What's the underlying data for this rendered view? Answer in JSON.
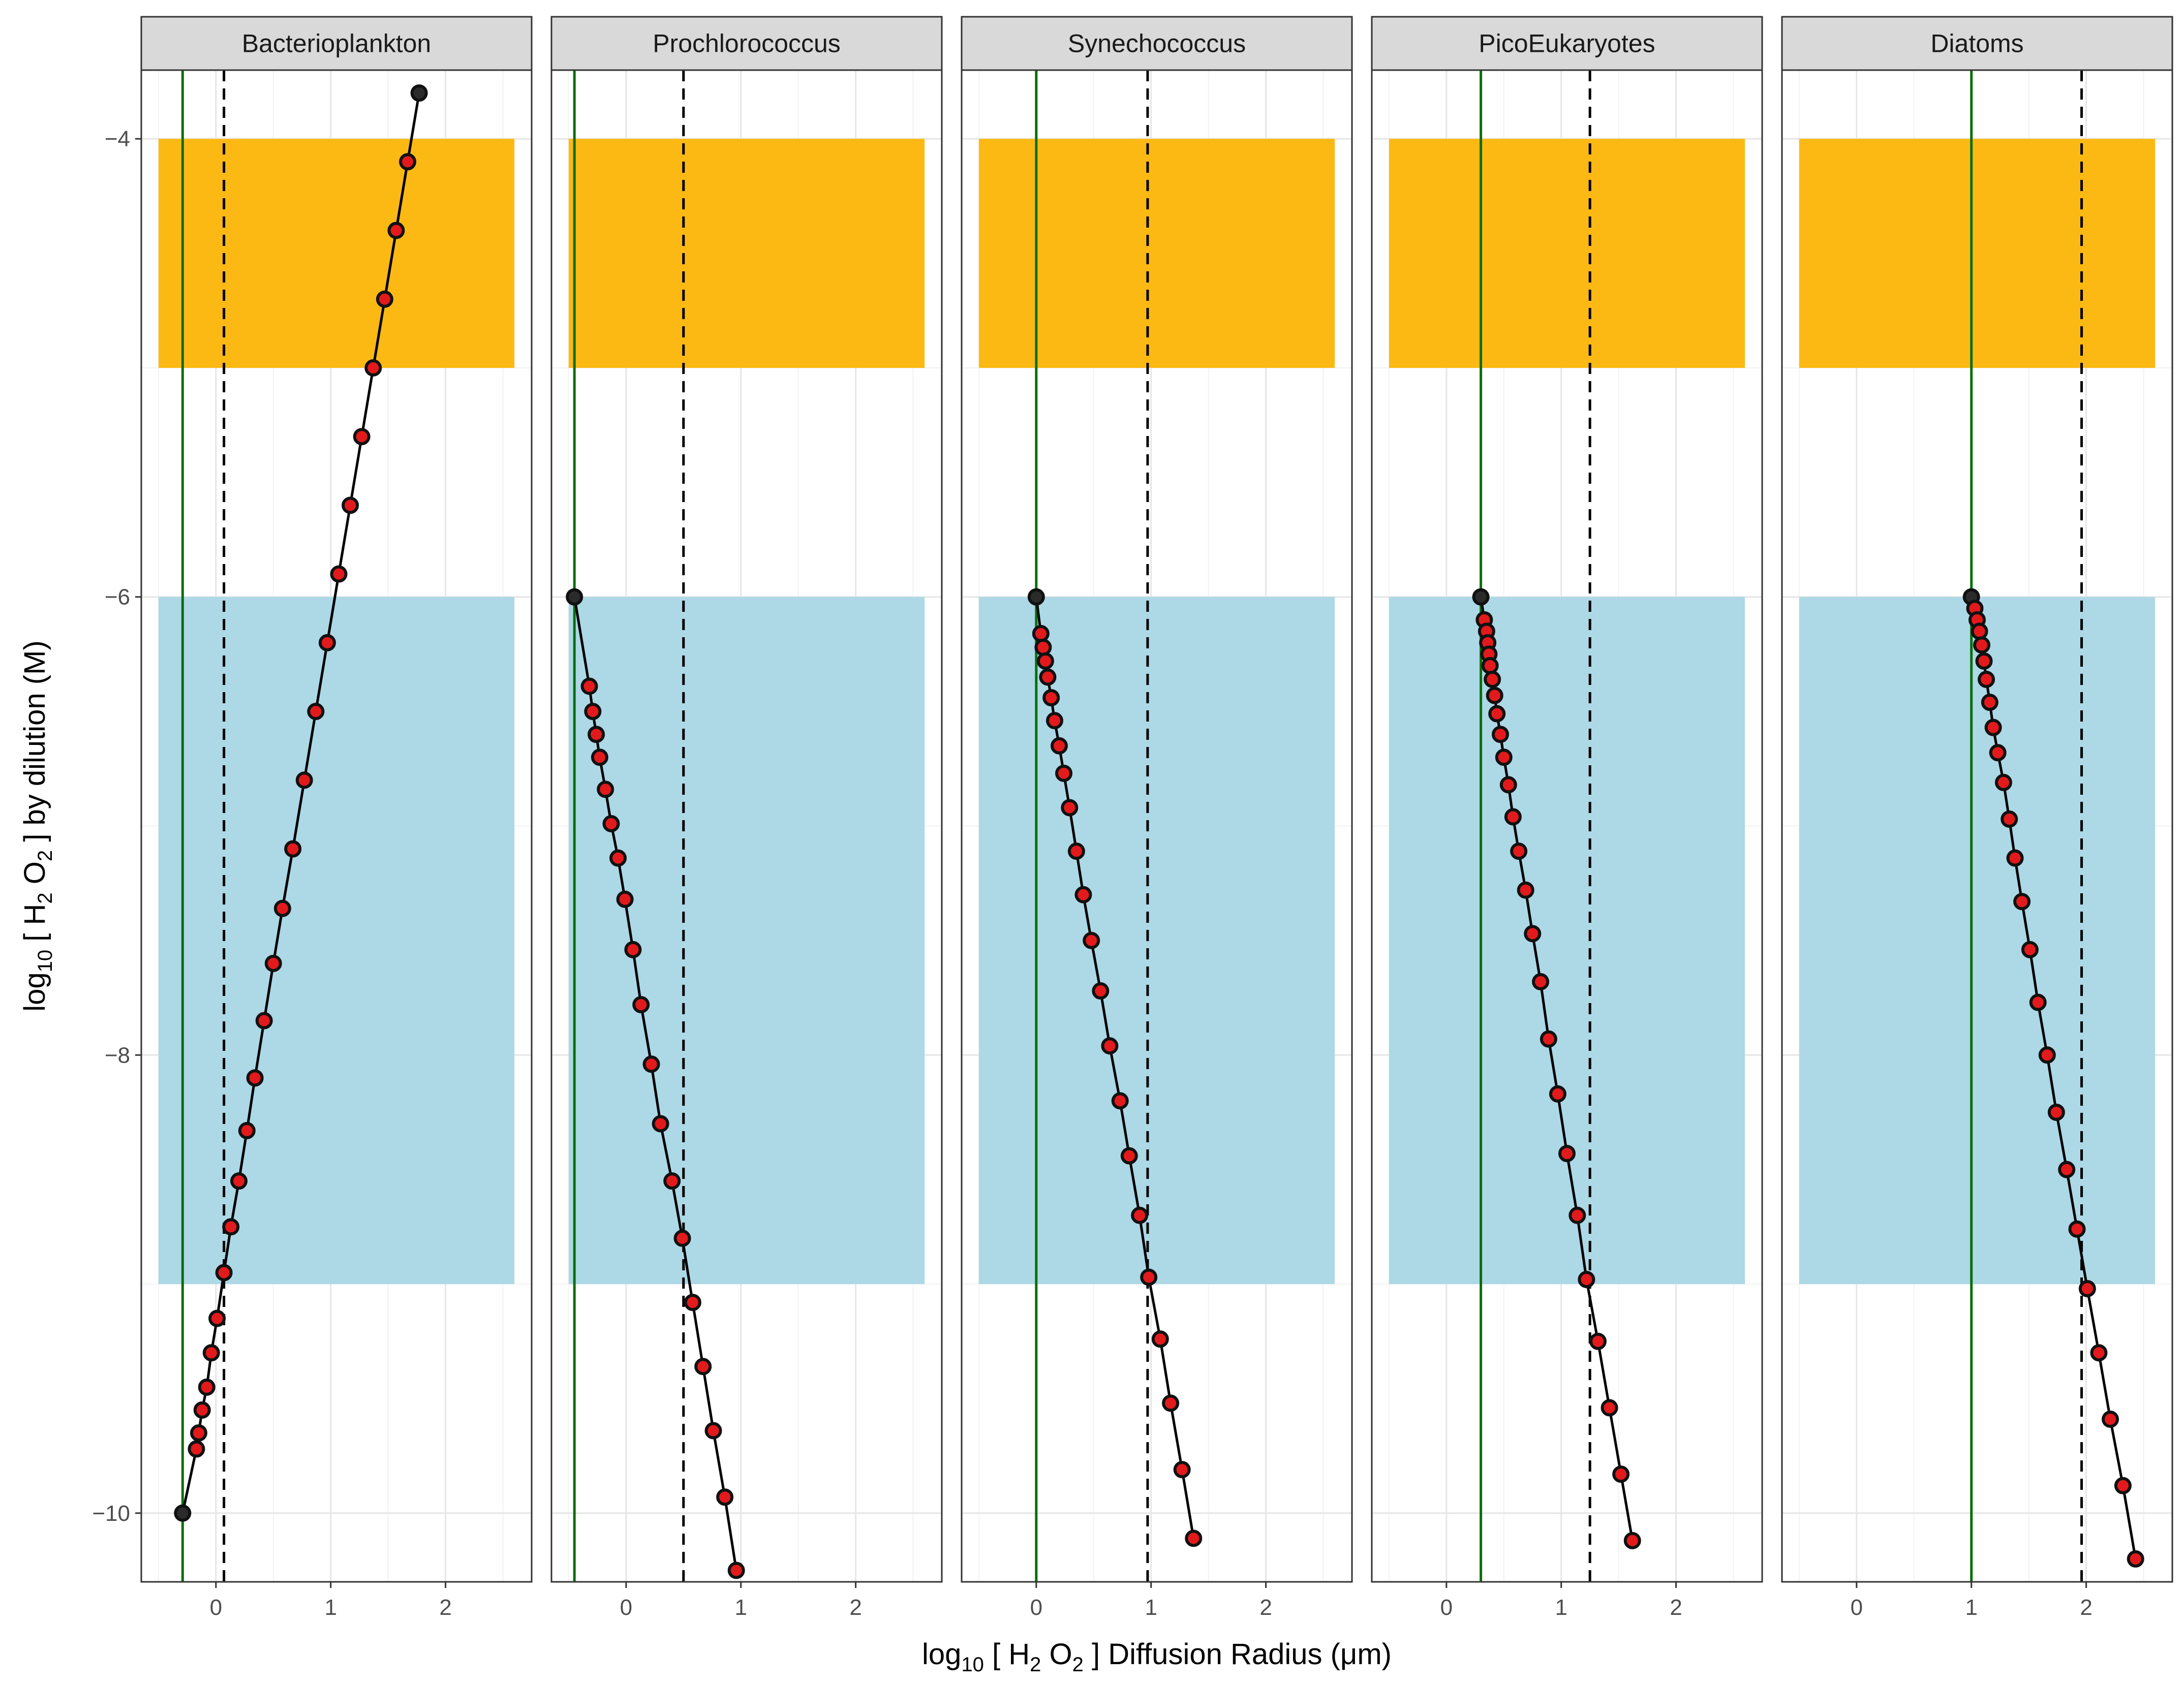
{
  "chart_data": {
    "type": "line",
    "xlabel_parts": [
      "log",
      "10",
      " [ H",
      "2",
      " O",
      "2",
      " ] Diffusion Radius (μm)"
    ],
    "ylabel_parts": [
      "log",
      "10",
      " [ H",
      "2",
      " O",
      "2",
      " ] by dilution (M)"
    ],
    "xlim": [
      -0.65,
      2.75
    ],
    "ylim": [
      -10.3,
      -3.7
    ],
    "x_ticks": [
      0,
      1,
      2
    ],
    "x_tick_labels": [
      "0",
      "1",
      "2"
    ],
    "y_ticks": [
      -10,
      -8,
      -6,
      -4
    ],
    "y_tick_labels": [
      "−10",
      "−8",
      "−6",
      "−4"
    ],
    "bands": [
      {
        "name": "orange",
        "ymin": -5.0,
        "ymax": -4.0,
        "xmin": -0.5,
        "xmax": 2.6,
        "color": "#FDB913"
      },
      {
        "name": "blue",
        "ymin": -9.0,
        "ymax": -6.0,
        "xmin": -0.5,
        "xmax": 2.6,
        "color": "#ADD8E6"
      }
    ],
    "colors": {
      "green_line": "#0B6E0B",
      "point_fill": "#E31A1C",
      "point_edge": "#111111",
      "line": "#000000",
      "grid_major": "#E6E6E6",
      "grid_minor": "#F2F2F2",
      "strip_fill": "#D9D9D9",
      "panel_border": "#333333"
    },
    "panels": [
      {
        "name": "Bacterioplankton",
        "green_x": -0.29,
        "dashed_x": 0.07,
        "series": [
          [
            1.77,
            -3.8
          ],
          [
            1.67,
            -4.1
          ],
          [
            1.57,
            -4.4
          ],
          [
            1.47,
            -4.7
          ],
          [
            1.37,
            -5.0
          ],
          [
            1.27,
            -5.3
          ],
          [
            1.17,
            -5.6
          ],
          [
            1.07,
            -5.9
          ],
          [
            0.97,
            -6.2
          ],
          [
            0.87,
            -6.5
          ],
          [
            0.77,
            -6.8
          ],
          [
            0.67,
            -7.1
          ],
          [
            0.58,
            -7.36
          ],
          [
            0.5,
            -7.6
          ],
          [
            0.42,
            -7.85
          ],
          [
            0.34,
            -8.1
          ],
          [
            0.27,
            -8.33
          ],
          [
            0.2,
            -8.55
          ],
          [
            0.13,
            -8.75
          ],
          [
            0.07,
            -8.95
          ],
          [
            0.01,
            -9.15
          ],
          [
            -0.04,
            -9.3
          ],
          [
            -0.08,
            -9.45
          ],
          [
            -0.12,
            -9.55
          ],
          [
            -0.15,
            -9.65
          ],
          [
            -0.17,
            -9.72
          ],
          [
            -0.29,
            -10.0
          ]
        ]
      },
      {
        "name": "Prochlorococcus",
        "green_x": -0.45,
        "dashed_x": 0.5,
        "series": [
          [
            -0.45,
            -6.0
          ],
          [
            -0.32,
            -6.39
          ],
          [
            -0.29,
            -6.5
          ],
          [
            -0.26,
            -6.6
          ],
          [
            -0.23,
            -6.7
          ],
          [
            -0.18,
            -6.84
          ],
          [
            -0.13,
            -6.99
          ],
          [
            -0.07,
            -7.14
          ],
          [
            -0.01,
            -7.32
          ],
          [
            0.06,
            -7.54
          ],
          [
            0.13,
            -7.78
          ],
          [
            0.22,
            -8.04
          ],
          [
            0.3,
            -8.3
          ],
          [
            0.4,
            -8.55
          ],
          [
            0.49,
            -8.8
          ],
          [
            0.58,
            -9.08
          ],
          [
            0.67,
            -9.36
          ],
          [
            0.76,
            -9.64
          ],
          [
            0.86,
            -9.93
          ],
          [
            0.96,
            -10.25
          ]
        ]
      },
      {
        "name": "Synechococcus",
        "green_x": 0.0,
        "dashed_x": 0.97,
        "series": [
          [
            0.0,
            -6.0
          ],
          [
            0.04,
            -6.16
          ],
          [
            0.06,
            -6.22
          ],
          [
            0.08,
            -6.28
          ],
          [
            0.1,
            -6.35
          ],
          [
            0.13,
            -6.44
          ],
          [
            0.16,
            -6.54
          ],
          [
            0.2,
            -6.65
          ],
          [
            0.24,
            -6.77
          ],
          [
            0.29,
            -6.92
          ],
          [
            0.35,
            -7.11
          ],
          [
            0.41,
            -7.3
          ],
          [
            0.48,
            -7.5
          ],
          [
            0.56,
            -7.72
          ],
          [
            0.64,
            -7.96
          ],
          [
            0.73,
            -8.2
          ],
          [
            0.81,
            -8.44
          ],
          [
            0.9,
            -8.7
          ],
          [
            0.98,
            -8.97
          ],
          [
            1.08,
            -9.24
          ],
          [
            1.17,
            -9.52
          ],
          [
            1.27,
            -9.81
          ],
          [
            1.37,
            -10.11
          ]
        ]
      },
      {
        "name": "PicoEukaryotes",
        "green_x": 0.3,
        "dashed_x": 1.25,
        "series": [
          [
            0.3,
            -6.0
          ],
          [
            0.33,
            -6.1
          ],
          [
            0.35,
            -6.15
          ],
          [
            0.36,
            -6.2
          ],
          [
            0.37,
            -6.25
          ],
          [
            0.38,
            -6.3
          ],
          [
            0.4,
            -6.36
          ],
          [
            0.42,
            -6.43
          ],
          [
            0.44,
            -6.51
          ],
          [
            0.47,
            -6.6
          ],
          [
            0.5,
            -6.7
          ],
          [
            0.54,
            -6.82
          ],
          [
            0.58,
            -6.96
          ],
          [
            0.63,
            -7.11
          ],
          [
            0.69,
            -7.28
          ],
          [
            0.75,
            -7.47
          ],
          [
            0.82,
            -7.68
          ],
          [
            0.89,
            -7.93
          ],
          [
            0.97,
            -8.17
          ],
          [
            1.05,
            -8.43
          ],
          [
            1.14,
            -8.7
          ],
          [
            1.22,
            -8.98
          ],
          [
            1.32,
            -9.25
          ],
          [
            1.42,
            -9.54
          ],
          [
            1.52,
            -9.83
          ],
          [
            1.62,
            -10.12
          ]
        ]
      },
      {
        "name": "Diatoms",
        "green_x": 1.0,
        "dashed_x": 1.96,
        "series": [
          [
            1.0,
            -6.0
          ],
          [
            1.03,
            -6.05
          ],
          [
            1.05,
            -6.1
          ],
          [
            1.07,
            -6.15
          ],
          [
            1.09,
            -6.21
          ],
          [
            1.11,
            -6.28
          ],
          [
            1.13,
            -6.36
          ],
          [
            1.16,
            -6.46
          ],
          [
            1.19,
            -6.57
          ],
          [
            1.23,
            -6.68
          ],
          [
            1.28,
            -6.81
          ],
          [
            1.33,
            -6.97
          ],
          [
            1.38,
            -7.14
          ],
          [
            1.44,
            -7.33
          ],
          [
            1.51,
            -7.54
          ],
          [
            1.58,
            -7.77
          ],
          [
            1.66,
            -8.0
          ],
          [
            1.74,
            -8.25
          ],
          [
            1.83,
            -8.5
          ],
          [
            1.92,
            -8.76
          ],
          [
            2.01,
            -9.02
          ],
          [
            2.11,
            -9.3
          ],
          [
            2.21,
            -9.59
          ],
          [
            2.32,
            -9.88
          ],
          [
            2.43,
            -10.2
          ]
        ]
      }
    ]
  }
}
